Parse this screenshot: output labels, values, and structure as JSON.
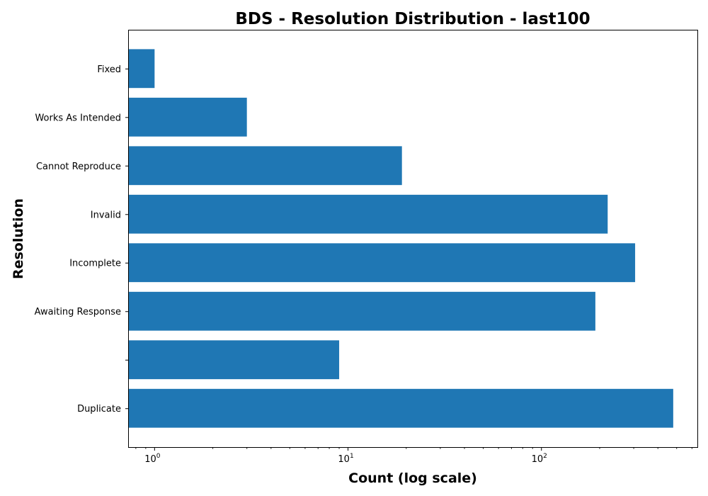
{
  "chart_data": {
    "type": "bar",
    "orientation": "horizontal",
    "title": "BDS - Resolution Distribution - last100",
    "xlabel": "Count (log scale)",
    "ylabel": "Resolution",
    "x_scale": "log",
    "xlim": [
      0.73,
      640
    ],
    "x_ticks": [
      {
        "value": 1,
        "base": "10",
        "exp": "0"
      },
      {
        "value": 10,
        "base": "10",
        "exp": "1"
      },
      {
        "value": 100,
        "base": "10",
        "exp": "2"
      }
    ],
    "categories": [
      "Duplicate",
      "",
      "Awaiting Response",
      "Incomplete",
      "Invalid",
      "Cannot Reproduce",
      "Works As Intended",
      "Fixed"
    ],
    "values": [
      480,
      9,
      190,
      305,
      220,
      19,
      3,
      1
    ],
    "bar_color": "#1f77b4",
    "grid": false,
    "legend": "none"
  }
}
